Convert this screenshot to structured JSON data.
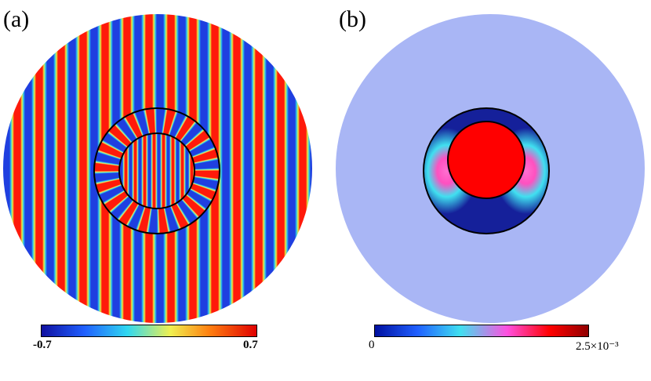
{
  "panels": [
    {
      "label": "(a)",
      "colorbar": {
        "min": "-0.7",
        "max": "0.7"
      }
    },
    {
      "label": "(b)",
      "colorbar": {
        "min": "0",
        "max": "2.5×10⁻³"
      }
    }
  ]
}
